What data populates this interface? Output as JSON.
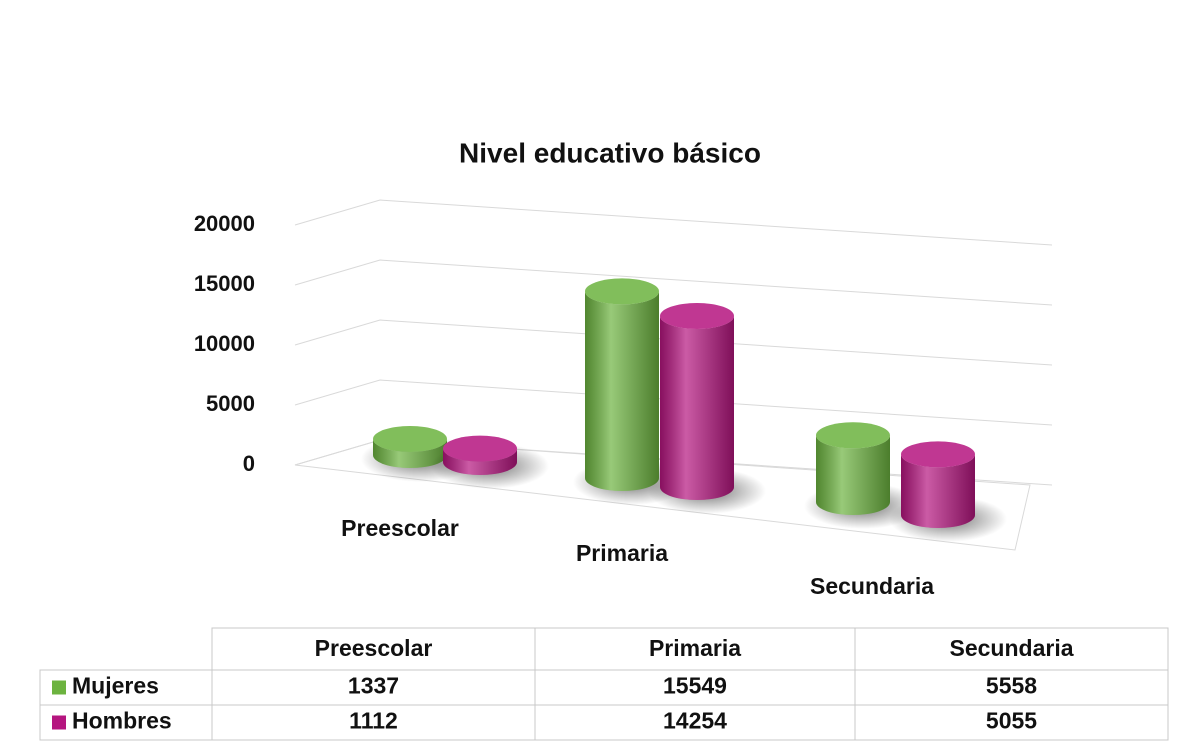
{
  "chart_data": {
    "type": "bar3d",
    "title": "Nivel educativo básico",
    "categories": [
      "Preescolar",
      "Primaria",
      "Secundaria"
    ],
    "series": [
      {
        "name": "Mujeres",
        "color": "#6cb33f",
        "values": [
          1337,
          15549,
          5558
        ]
      },
      {
        "name": "Hombres",
        "color": "#b5157f",
        "values": [
          1112,
          14254,
          5055
        ]
      }
    ],
    "ylim": [
      0,
      20000
    ],
    "yticks": [
      0,
      5000,
      10000,
      15000,
      20000
    ],
    "grid": true
  }
}
